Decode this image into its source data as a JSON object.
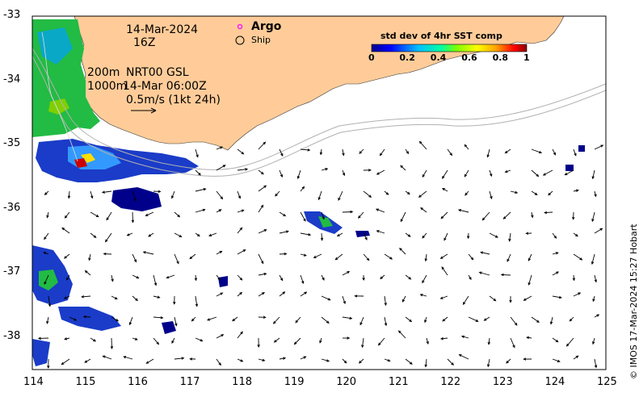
{
  "map": {
    "date_label": "14-Mar-2024",
    "hour_label": "16Z",
    "contour_labels": [
      "200m",
      "1000m"
    ],
    "current_source": "NRT00 GSL",
    "current_time": "14-Mar 06:00Z",
    "scale_label": "0.5m/s (1kt 24h)",
    "credit": "© IMOS 17-Mar-2024 15:27 Hobart",
    "extent": {
      "lon": [
        114,
        125
      ],
      "lat": [
        -38.5,
        -33
      ]
    },
    "lon_ticks": [
      "114",
      "115",
      "116",
      "117",
      "118",
      "119",
      "120",
      "121",
      "122",
      "123",
      "124",
      "125"
    ],
    "lat_ticks": [
      "-33",
      "-34",
      "-35",
      "-36",
      "-37",
      "-38"
    ]
  },
  "legend": {
    "argo_label": "Argo",
    "ship_label": "Ship",
    "argo_color": "#ff00ff"
  },
  "colorbar": {
    "title": "std dev of 4hr SST comp",
    "ticks": [
      "0",
      "0.2",
      "0.4",
      "0.6",
      "0.8",
      "1"
    ],
    "colors": [
      "#00008b",
      "#0000ff",
      "#00bfff",
      "#00ffa0",
      "#7fff00",
      "#ffff00",
      "#ffa500",
      "#ff0000",
      "#8b0000"
    ]
  },
  "colors": {
    "land": "#ffcc99",
    "contour": "#b0b0b0"
  }
}
